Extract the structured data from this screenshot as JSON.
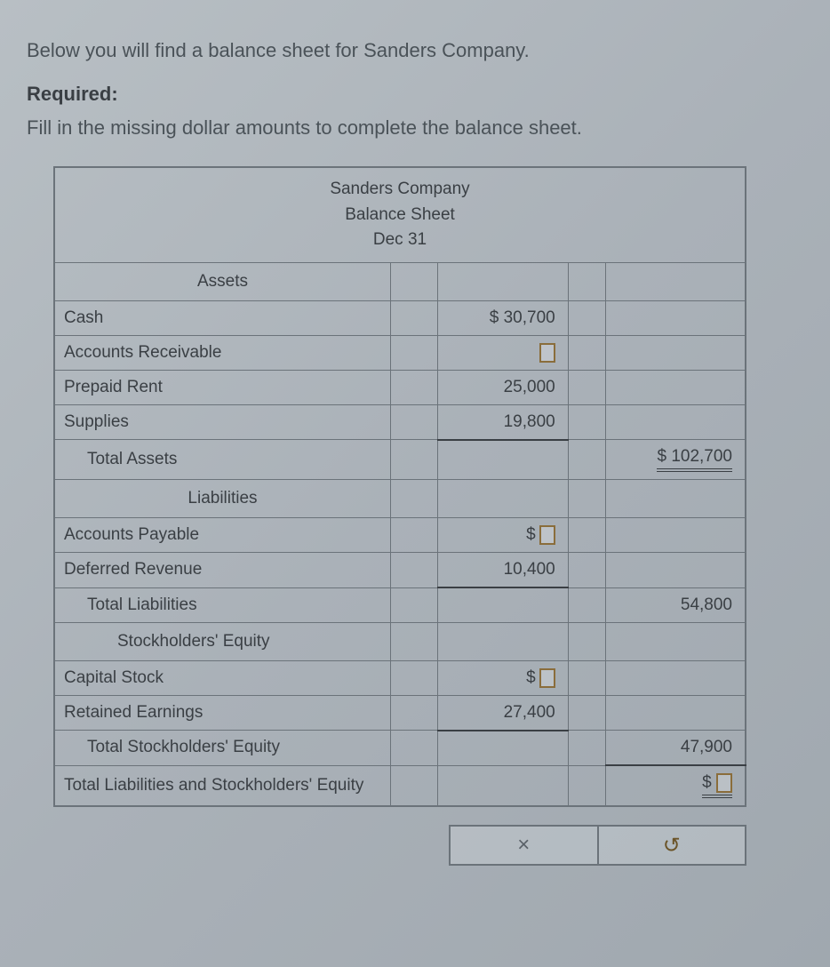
{
  "intro": "Below you will find a balance sheet for Sanders Company.",
  "required_label": "Required:",
  "instruction": "Fill in the missing dollar amounts to complete the balance sheet.",
  "sheet": {
    "company": "Sanders Company",
    "title": "Balance Sheet",
    "date": "Dec 31",
    "sections": {
      "assets_header": "Assets",
      "liabilities_header": "Liabilities",
      "equity_header": "Stockholders' Equity"
    },
    "rows": {
      "cash": {
        "label": "Cash",
        "value": "$ 30,700"
      },
      "ar": {
        "label": "Accounts Receivable",
        "value": ""
      },
      "prepaid_rent": {
        "label": "Prepaid Rent",
        "value": "25,000"
      },
      "supplies": {
        "label": "Supplies",
        "value": "19,800"
      },
      "total_assets": {
        "label": "Total Assets",
        "total": "$ 102,700"
      },
      "ap": {
        "label": "Accounts Payable",
        "value_prefix": "$"
      },
      "deferred_rev": {
        "label": "Deferred Revenue",
        "value": "10,400"
      },
      "total_liab": {
        "label": "Total Liabilities",
        "total": "54,800"
      },
      "capital_stock": {
        "label": "Capital Stock",
        "value_prefix": "$"
      },
      "retained_earnings": {
        "label": "Retained Earnings",
        "value": "27,400"
      },
      "total_equity": {
        "label": "Total Stockholders' Equity",
        "total": "47,900"
      },
      "total_liab_equity": {
        "label": "Total Liabilities and Stockholders' Equity",
        "total_prefix": "$"
      }
    }
  },
  "buttons": {
    "close": "×",
    "reset": "↺"
  },
  "style": {
    "background_gradient": [
      "#b8bfc4",
      "#aab1b8",
      "#a0a8af"
    ],
    "border_color": "#6b737a",
    "text_color": "#3a3f44",
    "input_border": "#8a6d3b",
    "font_size_body": 22,
    "font_size_table": 19
  }
}
